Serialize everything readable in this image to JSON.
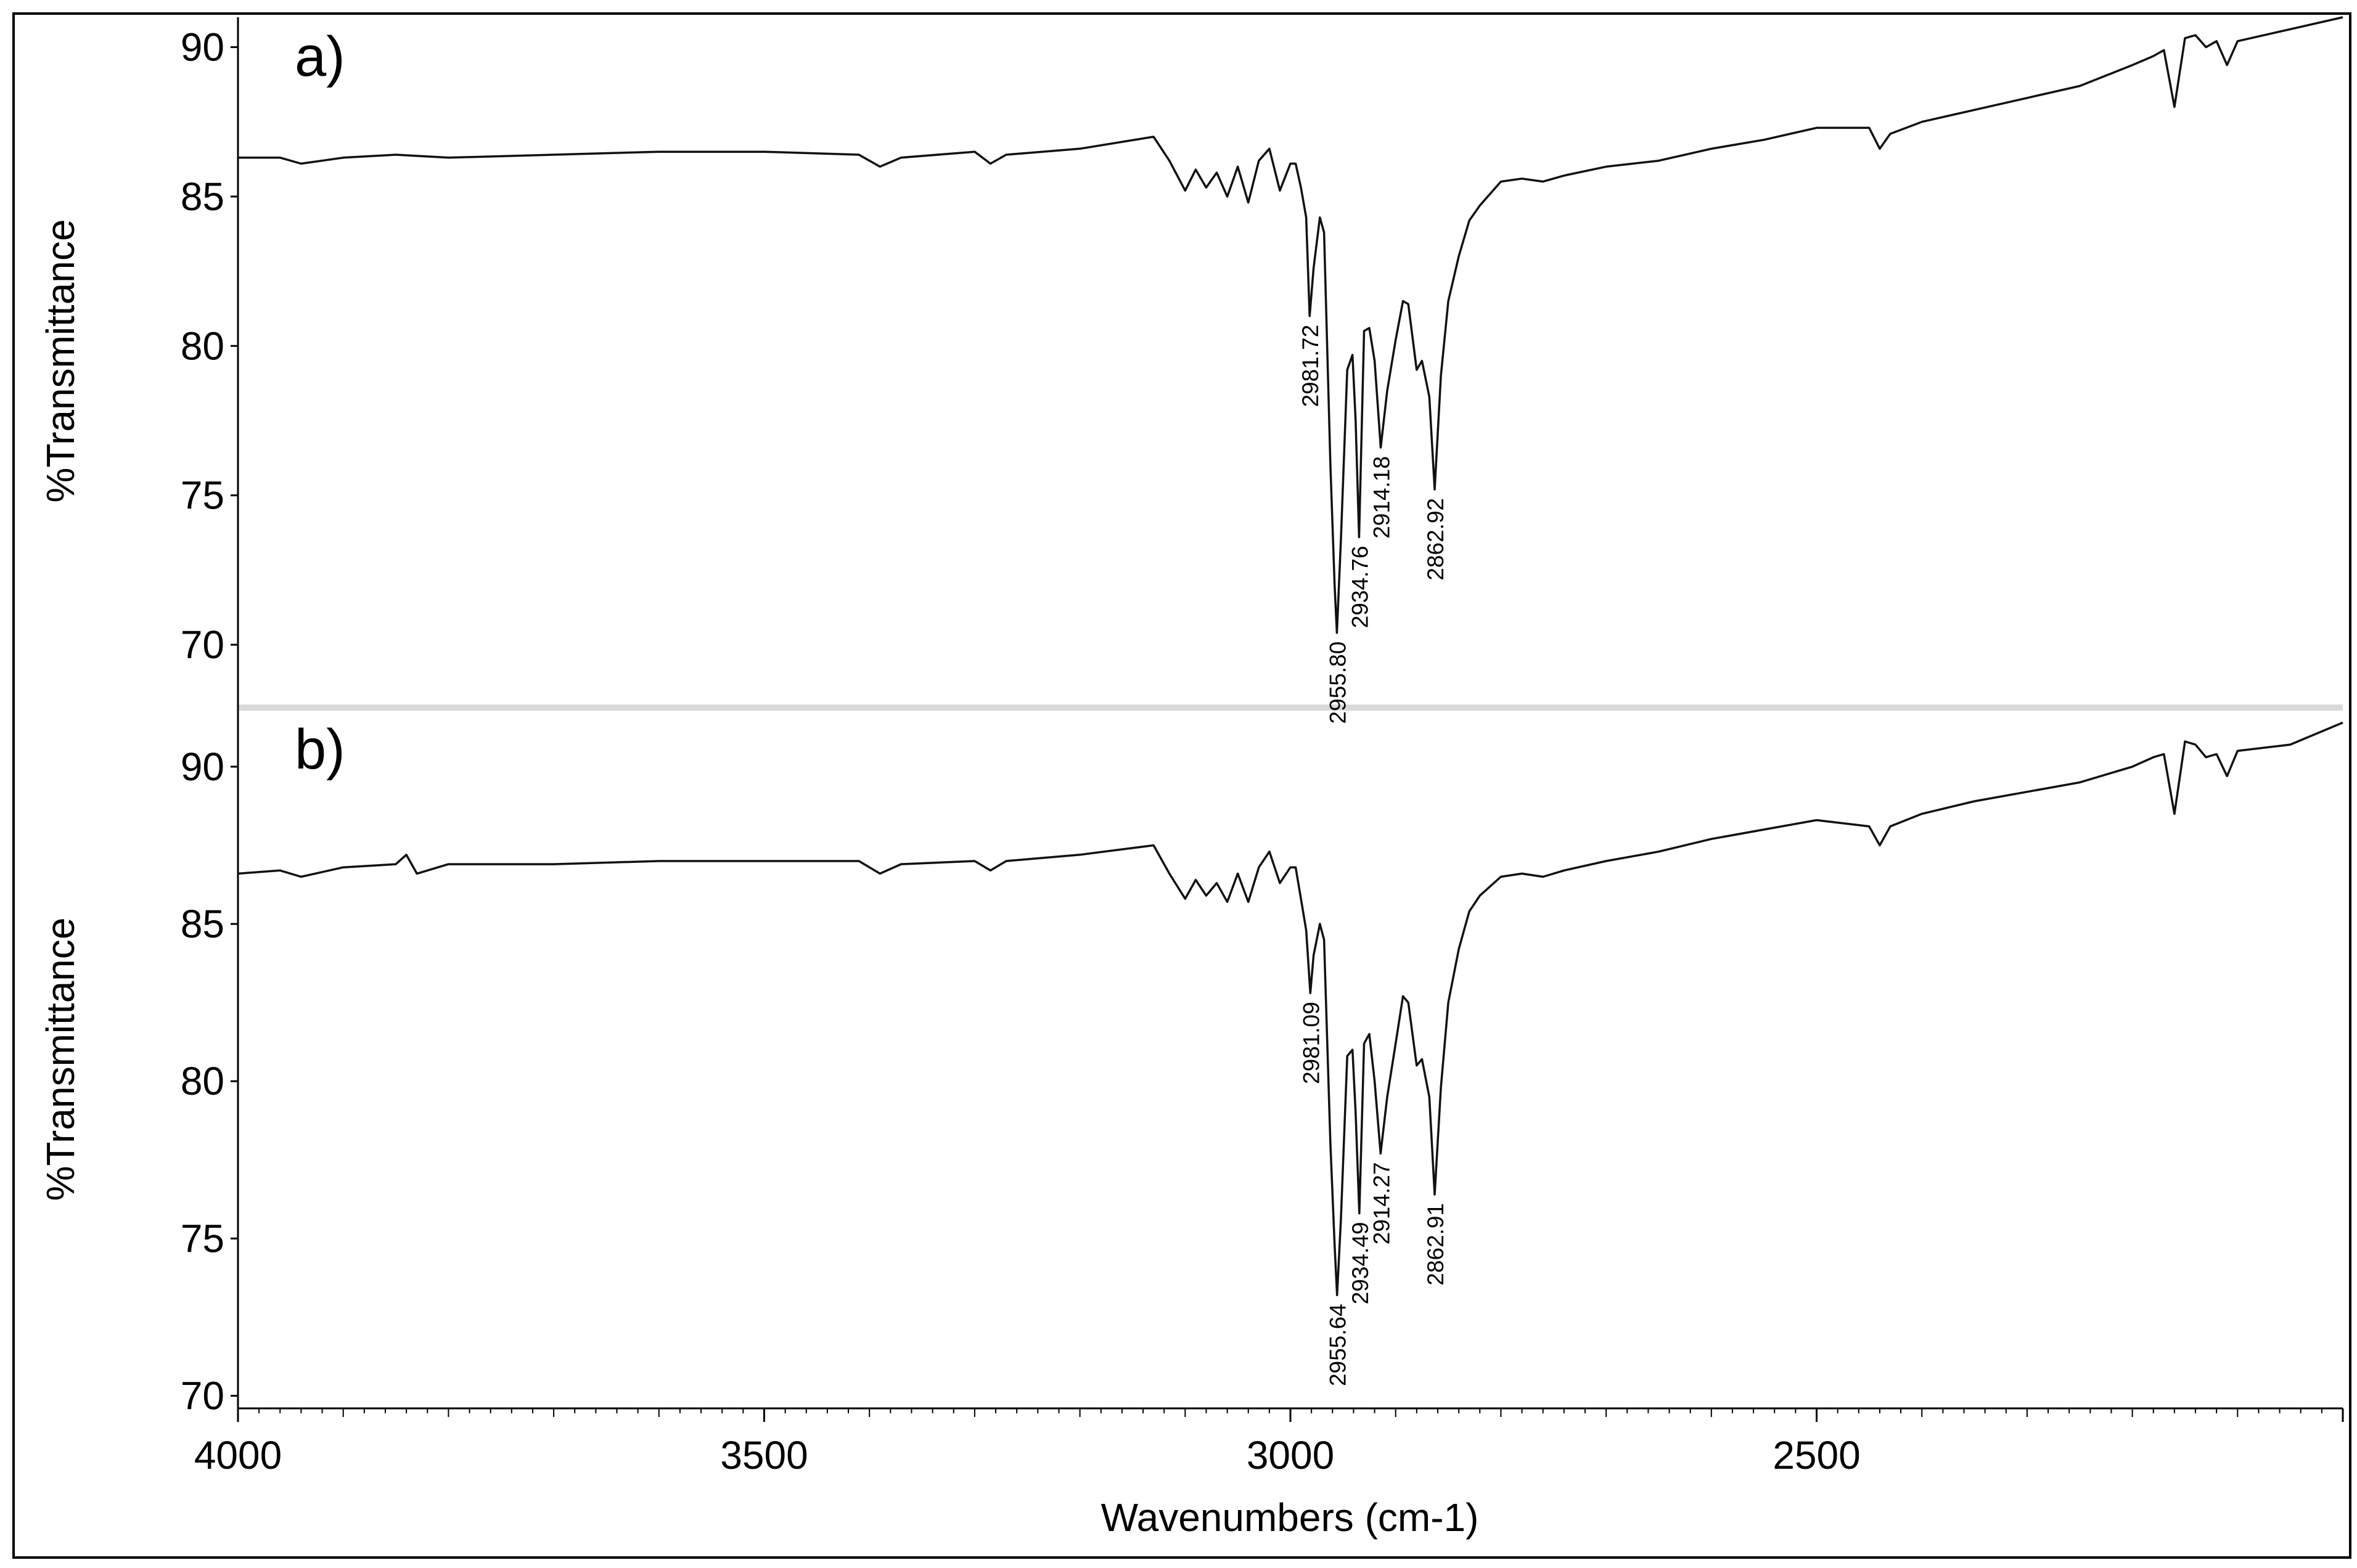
{
  "chart_data": [
    {
      "type": "line",
      "panel_label": "a)",
      "xlabel": "Wavenumbers (cm-1)",
      "ylabel": "%Transmittance",
      "xlim": [
        4000,
        2000
      ],
      "x_reversed": true,
      "ylim": [
        68,
        91
      ],
      "yticks": [
        90,
        85,
        80,
        75,
        70
      ],
      "grid": false,
      "series": [
        {
          "x": [
            4000,
            3960,
            3940,
            3900,
            3850,
            3800,
            3700,
            3600,
            3500,
            3410,
            3390,
            3370,
            3300,
            3285,
            3270,
            3200,
            3130,
            3115,
            3100,
            3090,
            3080,
            3070,
            3060,
            3050,
            3040,
            3030,
            3020,
            3010,
            3000,
            2995,
            2990,
            2985,
            2981.72,
            2978,
            2972,
            2968,
            2962,
            2958,
            2955.8,
            2952,
            2946,
            2941,
            2938,
            2934.76,
            2930,
            2925,
            2920,
            2914.18,
            2908,
            2900,
            2893,
            2888,
            2880,
            2875,
            2868,
            2862.92,
            2857,
            2850,
            2840,
            2830,
            2820,
            2800,
            2780,
            2760,
            2740,
            2700,
            2650,
            2600,
            2550,
            2500,
            2450,
            2440,
            2430,
            2400,
            2350,
            2300,
            2250,
            2200,
            2180,
            2170,
            2160,
            2150,
            2140,
            2130,
            2120,
            2110,
            2100,
            2050,
            2000
          ],
          "y": [
            86.3,
            86.3,
            86.1,
            86.3,
            86.4,
            86.3,
            86.4,
            86.5,
            86.5,
            86.4,
            86.0,
            86.3,
            86.5,
            86.1,
            86.4,
            86.6,
            87.0,
            86.2,
            85.2,
            85.9,
            85.3,
            85.8,
            85.0,
            86.0,
            84.8,
            86.2,
            86.6,
            85.2,
            86.1,
            86.1,
            85.3,
            84.3,
            81.0,
            82.6,
            84.3,
            83.8,
            76.0,
            72.0,
            70.4,
            73.5,
            79.2,
            79.7,
            77.5,
            73.6,
            80.5,
            80.6,
            79.5,
            76.6,
            78.5,
            80.2,
            81.5,
            81.4,
            79.2,
            79.5,
            78.3,
            75.2,
            79.0,
            81.5,
            83.0,
            84.2,
            84.7,
            85.5,
            85.6,
            85.5,
            85.7,
            86.0,
            86.2,
            86.6,
            86.9,
            87.3,
            87.3,
            86.6,
            87.1,
            87.5,
            87.9,
            88.3,
            88.7,
            89.4,
            89.7,
            89.9,
            88.0,
            90.3,
            90.4,
            90.0,
            90.2,
            89.4,
            90.2,
            90.6,
            91.0
          ]
        }
      ],
      "annotations": [
        {
          "text": "2981.72",
          "x": 2981.72,
          "y": 81.0
        },
        {
          "text": "2955.80",
          "x": 2955.8,
          "y": 70.4
        },
        {
          "text": "2934.76",
          "x": 2934.76,
          "y": 73.6
        },
        {
          "text": "2914.18",
          "x": 2914.18,
          "y": 76.6
        },
        {
          "text": "2862.92",
          "x": 2862.92,
          "y": 75.2
        }
      ]
    },
    {
      "type": "line",
      "panel_label": "b)",
      "xlabel": "Wavenumbers (cm-1)",
      "ylabel": "%Transmittance",
      "xlim": [
        4000,
        2000
      ],
      "x_reversed": true,
      "xticks": [
        4000,
        3500,
        3000,
        2500
      ],
      "ylim": [
        69.6,
        91.8
      ],
      "yticks": [
        90,
        85,
        80,
        75,
        70
      ],
      "grid": false,
      "series": [
        {
          "x": [
            4000,
            3960,
            3940,
            3900,
            3850,
            3840,
            3830,
            3800,
            3700,
            3600,
            3500,
            3410,
            3390,
            3370,
            3300,
            3285,
            3270,
            3200,
            3130,
            3115,
            3100,
            3090,
            3080,
            3070,
            3060,
            3050,
            3040,
            3030,
            3020,
            3010,
            3000,
            2995,
            2990,
            2985,
            2981.09,
            2978,
            2972,
            2968,
            2962,
            2958,
            2955.64,
            2952,
            2946,
            2941,
            2938,
            2934.49,
            2930,
            2925,
            2920,
            2914.27,
            2908,
            2900,
            2893,
            2888,
            2880,
            2875,
            2868,
            2862.91,
            2857,
            2850,
            2840,
            2830,
            2820,
            2800,
            2780,
            2760,
            2740,
            2700,
            2650,
            2600,
            2550,
            2500,
            2450,
            2440,
            2430,
            2400,
            2350,
            2300,
            2250,
            2200,
            2180,
            2170,
            2160,
            2150,
            2140,
            2130,
            2120,
            2110,
            2100,
            2050,
            2000
          ],
          "y": [
            86.6,
            86.7,
            86.5,
            86.8,
            86.9,
            87.2,
            86.6,
            86.9,
            86.9,
            87.0,
            87.0,
            87.0,
            86.6,
            86.9,
            87.0,
            86.7,
            87.0,
            87.2,
            87.5,
            86.6,
            85.8,
            86.4,
            85.9,
            86.3,
            85.7,
            86.6,
            85.7,
            86.8,
            87.3,
            86.3,
            86.8,
            86.8,
            85.8,
            84.8,
            82.8,
            84.0,
            85.0,
            84.5,
            78.0,
            74.8,
            73.2,
            75.6,
            80.8,
            81.0,
            79.0,
            75.8,
            81.2,
            81.5,
            80.0,
            77.7,
            79.5,
            81.2,
            82.7,
            82.5,
            80.5,
            80.7,
            79.5,
            76.4,
            79.8,
            82.5,
            84.2,
            85.4,
            85.9,
            86.5,
            86.6,
            86.5,
            86.7,
            87.0,
            87.3,
            87.7,
            88.0,
            88.3,
            88.1,
            87.5,
            88.1,
            88.5,
            88.9,
            89.2,
            89.5,
            90.0,
            90.3,
            90.4,
            88.5,
            90.8,
            90.7,
            90.3,
            90.4,
            89.7,
            90.5,
            90.7,
            91.4
          ]
        }
      ],
      "annotations": [
        {
          "text": "2981.09",
          "x": 2981.09,
          "y": 82.8
        },
        {
          "text": "2955.64",
          "x": 2955.64,
          "y": 73.2
        },
        {
          "text": "2934.49",
          "x": 2934.49,
          "y": 75.8
        },
        {
          "text": "2914.27",
          "x": 2914.27,
          "y": 77.7
        },
        {
          "text": "2862.91",
          "x": 2862.91,
          "y": 76.4
        }
      ]
    }
  ]
}
